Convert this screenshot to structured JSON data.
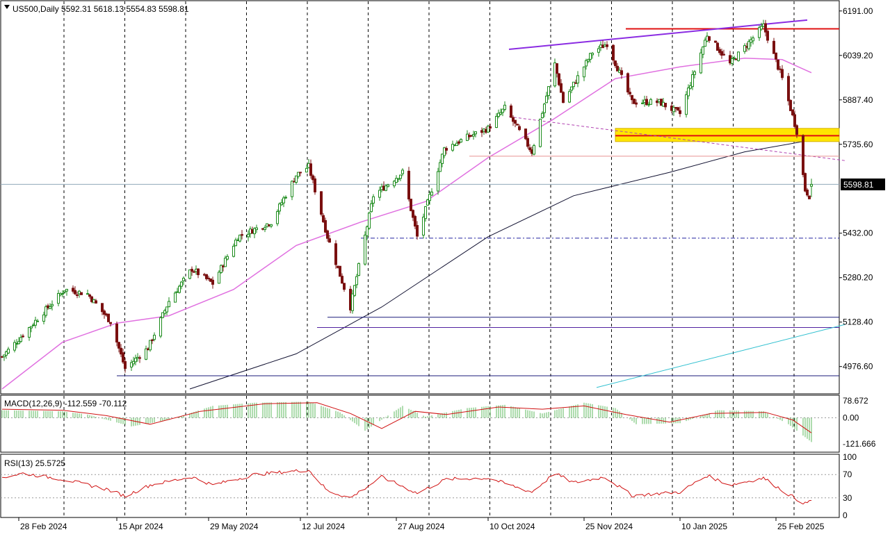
{
  "header": {
    "symbol_line": "US500,Daily  5592.31 5618.13 5554.83 5598.81"
  },
  "price_axis": {
    "ticks": [
      "6191.00",
      "6039.20",
      "5887.40",
      "5735.60",
      "5432.00",
      "5280.20",
      "5128.40",
      "4976.60"
    ],
    "current_price": "5598.81"
  },
  "macd": {
    "label": "MACD(12,26,9) -112.559 -70.112",
    "ticks": [
      "78.672",
      "0.00",
      "-121.666"
    ]
  },
  "rsi": {
    "label": "RSI(13) 25.5725",
    "ticks": [
      "100",
      "70",
      "30",
      "0"
    ]
  },
  "date_axis": {
    "ticks": [
      "28 Feb 2024",
      "15 Apr 2024",
      "29 May 2024",
      "12 Jul 2024",
      "27 Aug 2024",
      "10 Oct 2024",
      "25 Nov 2024",
      "10 Jan 2025",
      "25 Feb 2025"
    ]
  },
  "colors": {
    "bull": "#1a8a1a",
    "bear": "#7a1010",
    "ma50": "#e070e0",
    "ma200": "#101030",
    "macd_hist": "#5cb85c",
    "macd_signal": "#d01010",
    "rsi_line": "#d01010",
    "resistance": "#e01010",
    "zone": "#ffe600",
    "trend_purple": "#8a2be2",
    "support_navy": "#1a1a7a",
    "trend_cyan": "#30c0d0"
  },
  "chart_data": [
    {
      "type": "candlestick",
      "title": "US500,Daily",
      "ohlc_last": {
        "open": 5592.31,
        "high": 5618.13,
        "low": 5554.83,
        "close": 5598.81
      },
      "ylim": [
        4900,
        6200
      ],
      "x_range": [
        "2024-02-20",
        "2025-03-25"
      ],
      "close_path": [
        [
          "2024-02-20",
          5010
        ],
        [
          "2024-02-28",
          5070
        ],
        [
          "2024-03-08",
          5140
        ],
        [
          "2024-03-21",
          5240
        ],
        [
          "2024-04-01",
          5225
        ],
        [
          "2024-04-12",
          5130
        ],
        [
          "2024-04-19",
          4970
        ],
        [
          "2024-04-30",
          5040
        ],
        [
          "2024-05-10",
          5200
        ],
        [
          "2024-05-21",
          5310
        ],
        [
          "2024-05-31",
          5260
        ],
        [
          "2024-06-12",
          5420
        ],
        [
          "2024-06-28",
          5470
        ],
        [
          "2024-07-10",
          5630
        ],
        [
          "2024-07-16",
          5660
        ],
        [
          "2024-07-25",
          5420
        ],
        [
          "2024-08-05",
          5180
        ],
        [
          "2024-08-16",
          5560
        ],
        [
          "2024-08-30",
          5640
        ],
        [
          "2024-09-06",
          5420
        ],
        [
          "2024-09-19",
          5720
        ],
        [
          "2024-09-30",
          5760
        ],
        [
          "2024-10-10",
          5790
        ],
        [
          "2024-10-18",
          5860
        ],
        [
          "2024-10-31",
          5710
        ],
        [
          "2024-11-11",
          6010
        ],
        [
          "2024-11-15",
          5880
        ],
        [
          "2024-11-29",
          6050
        ],
        [
          "2024-12-06",
          6080
        ],
        [
          "2024-12-18",
          5880
        ],
        [
          "2024-12-31",
          5880
        ],
        [
          "2025-01-10",
          5840
        ],
        [
          "2025-01-23",
          6110
        ],
        [
          "2025-02-03",
          6010
        ],
        [
          "2025-02-19",
          6140
        ],
        [
          "2025-02-28",
          5960
        ],
        [
          "2025-03-07",
          5780
        ],
        [
          "2025-03-11",
          5580
        ],
        [
          "2025-03-13",
          5560
        ],
        [
          "2025-03-14",
          5598.81
        ]
      ],
      "ma50_path": [
        [
          "2024-02-20",
          4900
        ],
        [
          "2024-03-20",
          5060
        ],
        [
          "2024-04-15",
          5125
        ],
        [
          "2024-05-10",
          5150
        ],
        [
          "2024-06-10",
          5240
        ],
        [
          "2024-07-10",
          5390
        ],
        [
          "2024-08-10",
          5470
        ],
        [
          "2024-09-10",
          5540
        ],
        [
          "2024-10-10",
          5690
        ],
        [
          "2024-11-10",
          5820
        ],
        [
          "2024-12-10",
          5960
        ],
        [
          "2025-01-10",
          6000
        ],
        [
          "2025-02-10",
          6030
        ],
        [
          "2025-02-28",
          6025
        ],
        [
          "2025-03-14",
          5980
        ]
      ],
      "ma200_path": [
        [
          "2024-05-20",
          4900
        ],
        [
          "2024-07-10",
          5020
        ],
        [
          "2024-08-20",
          5180
        ],
        [
          "2024-10-10",
          5420
        ],
        [
          "2024-11-20",
          5560
        ],
        [
          "2025-01-05",
          5640
        ],
        [
          "2025-02-10",
          5710
        ],
        [
          "2025-03-14",
          5750
        ]
      ],
      "annotations": {
        "resistance_line": 6130,
        "supply_zone": [
          5745,
          5790
        ],
        "zone_midline": 5765,
        "support_lines": [
          5415,
          5145,
          5110,
          4945
        ],
        "thin_red_level": 5695
      }
    },
    {
      "type": "histogram",
      "title": "MACD(12,26,9)",
      "ylim": [
        -150,
        95
      ],
      "macd_path": [
        [
          "2024-02-20",
          35
        ],
        [
          "2024-03-20",
          30
        ],
        [
          "2024-04-01",
          15
        ],
        [
          "2024-04-22",
          -40
        ],
        [
          "2024-05-10",
          -10
        ],
        [
          "2024-05-31",
          55
        ],
        [
          "2024-06-20",
          70
        ],
        [
          "2024-07-16",
          75
        ],
        [
          "2024-07-31",
          25
        ],
        [
          "2024-08-12",
          -60
        ],
        [
          "2024-08-30",
          55
        ],
        [
          "2024-09-10",
          5
        ],
        [
          "2024-09-30",
          45
        ],
        [
          "2024-10-18",
          60
        ],
        [
          "2024-11-05",
          20
        ],
        [
          "2024-11-25",
          70
        ],
        [
          "2024-12-10",
          45
        ],
        [
          "2024-12-20",
          -30
        ],
        [
          "2025-01-10",
          -25
        ],
        [
          "2025-01-28",
          35
        ],
        [
          "2025-02-19",
          30
        ],
        [
          "2025-03-03",
          -30
        ],
        [
          "2025-03-14",
          -112.559
        ]
      ],
      "signal_path": [
        [
          "2024-02-20",
          40
        ],
        [
          "2024-03-20",
          35
        ],
        [
          "2024-04-10",
          10
        ],
        [
          "2024-05-01",
          -30
        ],
        [
          "2024-05-25",
          30
        ],
        [
          "2024-06-25",
          65
        ],
        [
          "2024-07-20",
          70
        ],
        [
          "2024-08-05",
          20
        ],
        [
          "2024-08-20",
          -50
        ],
        [
          "2024-09-05",
          30
        ],
        [
          "2024-09-20",
          15
        ],
        [
          "2024-10-15",
          50
        ],
        [
          "2024-11-05",
          40
        ],
        [
          "2024-11-25",
          55
        ],
        [
          "2024-12-15",
          15
        ],
        [
          "2025-01-05",
          -20
        ],
        [
          "2025-01-25",
          20
        ],
        [
          "2025-02-20",
          25
        ],
        [
          "2025-03-05",
          -10
        ],
        [
          "2025-03-14",
          -70.112
        ]
      ]
    },
    {
      "type": "line",
      "title": "RSI(13)",
      "ylim": [
        0,
        100
      ],
      "levels": [
        70,
        30
      ],
      "rsi_path": [
        [
          "2024-02-20",
          65
        ],
        [
          "2024-03-01",
          72
        ],
        [
          "2024-03-20",
          62
        ],
        [
          "2024-04-10",
          45
        ],
        [
          "2024-04-19",
          33
        ],
        [
          "2024-05-01",
          52
        ],
        [
          "2024-05-21",
          66
        ],
        [
          "2024-05-31",
          52
        ],
        [
          "2024-06-20",
          70
        ],
        [
          "2024-07-16",
          78
        ],
        [
          "2024-07-25",
          42
        ],
        [
          "2024-08-05",
          30
        ],
        [
          "2024-08-20",
          66
        ],
        [
          "2024-09-06",
          38
        ],
        [
          "2024-09-20",
          62
        ],
        [
          "2024-10-10",
          64
        ],
        [
          "2024-10-31",
          40
        ],
        [
          "2024-11-11",
          72
        ],
        [
          "2024-11-20",
          56
        ],
        [
          "2024-12-05",
          66
        ],
        [
          "2024-12-18",
          34
        ],
        [
          "2025-01-10",
          40
        ],
        [
          "2025-01-23",
          68
        ],
        [
          "2025-02-03",
          52
        ],
        [
          "2025-02-19",
          64
        ],
        [
          "2025-03-03",
          36
        ],
        [
          "2025-03-11",
          20
        ],
        [
          "2025-03-14",
          25.5725
        ]
      ]
    }
  ]
}
